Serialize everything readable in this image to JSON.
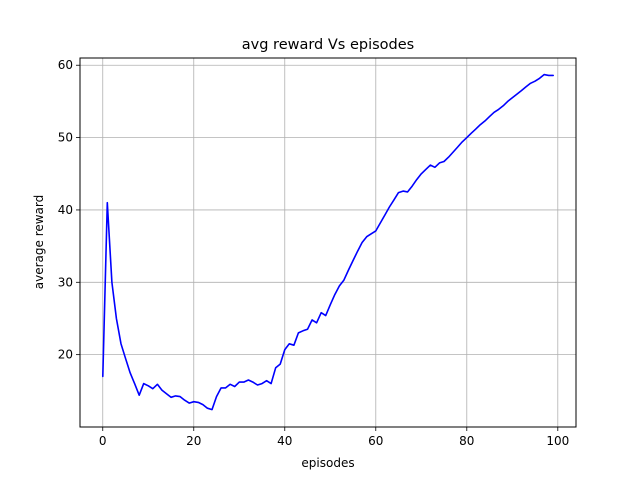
{
  "chart_data": {
    "type": "line",
    "title": "avg reward Vs episodes",
    "xlabel": "episodes",
    "ylabel": "average reward",
    "xlim": [
      -5,
      104
    ],
    "ylim": [
      10,
      61
    ],
    "xticks": [
      0,
      20,
      40,
      60,
      80,
      100
    ],
    "yticks": [
      20,
      30,
      40,
      50,
      60
    ],
    "grid": true,
    "series": [
      {
        "color": "#0000ff",
        "x": [
          0,
          1,
          2,
          3,
          4,
          5,
          6,
          7,
          8,
          9,
          10,
          11,
          12,
          13,
          14,
          15,
          16,
          17,
          18,
          19,
          20,
          21,
          22,
          23,
          24,
          25,
          26,
          27,
          28,
          29,
          30,
          31,
          32,
          33,
          34,
          35,
          36,
          37,
          38,
          39,
          40,
          41,
          42,
          43,
          44,
          45,
          46,
          47,
          48,
          49,
          50,
          51,
          52,
          53,
          54,
          55,
          56,
          57,
          58,
          59,
          60,
          61,
          62,
          63,
          64,
          65,
          66,
          67,
          68,
          69,
          70,
          71,
          72,
          73,
          74,
          75,
          76,
          77,
          78,
          79,
          80,
          81,
          82,
          83,
          84,
          85,
          86,
          87,
          88,
          89,
          90,
          91,
          92,
          93,
          94,
          95,
          96,
          97,
          98,
          99
        ],
        "values": [
          17.0,
          41.0,
          30.0,
          25.0,
          21.5,
          19.5,
          17.5,
          16.0,
          14.4,
          16.0,
          15.7,
          15.3,
          15.9,
          15.1,
          14.6,
          14.1,
          14.3,
          14.2,
          13.7,
          13.3,
          13.5,
          13.4,
          13.1,
          12.6,
          12.4,
          14.2,
          15.4,
          15.4,
          15.9,
          15.6,
          16.2,
          16.2,
          16.5,
          16.2,
          15.8,
          16.0,
          16.4,
          16.0,
          18.2,
          18.7,
          20.7,
          21.5,
          21.3,
          23.0,
          23.3,
          23.5,
          24.8,
          24.4,
          25.8,
          25.4,
          26.9,
          28.3,
          29.5,
          30.3,
          31.7,
          33.0,
          34.3,
          35.5,
          36.3,
          36.7,
          37.1,
          38.2,
          39.3,
          40.4,
          41.4,
          42.4,
          42.6,
          42.5,
          43.3,
          44.2,
          45.0,
          45.6,
          46.2,
          45.9,
          46.5,
          46.7,
          47.3,
          48.0,
          48.7,
          49.4,
          50.0,
          50.6,
          51.2,
          51.8,
          52.3,
          52.9,
          53.5,
          53.9,
          54.4,
          55.0,
          55.5,
          56.0,
          56.5,
          57.0,
          57.5,
          57.8,
          58.2,
          58.7,
          58.6,
          58.6
        ]
      }
    ]
  }
}
